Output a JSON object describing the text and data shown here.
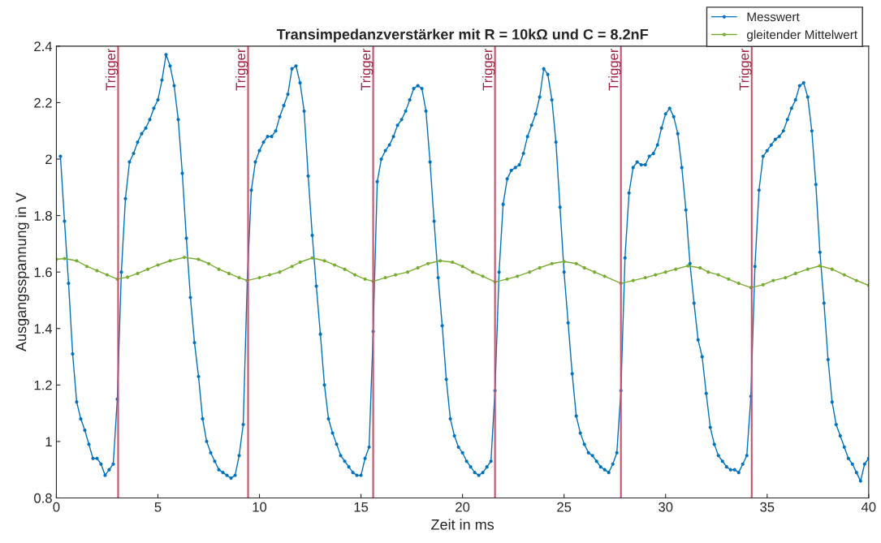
{
  "chart_data": {
    "type": "line",
    "title": "Transimpedanzverstärker mit R = 10kΩ und C = 8.2nF",
    "xlabel": "Zeit in ms",
    "ylabel": "Ausgangsspannung in V",
    "xlim": [
      0,
      40
    ],
    "xticks": [
      0,
      5,
      10,
      15,
      20,
      25,
      30,
      35,
      40
    ],
    "ylim": [
      0.8,
      2.4
    ],
    "yticks": [
      0.8,
      1,
      1.2,
      1.4,
      1.6,
      1.8,
      2,
      2.2,
      2.4
    ],
    "grid": false,
    "legend": "top right",
    "marker": "circle",
    "line_style": "solid",
    "series": [
      {
        "name": "Messwert",
        "color": "#0072bd",
        "x": [
          0.2,
          0.4,
          0.6,
          0.8,
          1.0,
          1.2,
          1.4,
          1.6,
          1.8,
          2.0,
          2.2,
          2.4,
          2.6,
          2.8,
          3.0,
          3.2,
          3.4,
          3.6,
          3.8,
          4.0,
          4.2,
          4.4,
          4.6,
          4.8,
          5.0,
          5.2,
          5.4,
          5.6,
          5.8,
          6.0,
          6.2,
          6.4,
          6.6,
          6.8,
          7.0,
          7.2,
          7.4,
          7.6,
          7.8,
          8.0,
          8.2,
          8.4,
          8.6,
          8.8,
          9.0,
          9.2,
          9.4,
          9.6,
          9.8,
          10.0,
          10.2,
          10.4,
          10.6,
          10.8,
          11.0,
          11.2,
          11.4,
          11.6,
          11.8,
          12.0,
          12.2,
          12.4,
          12.6,
          12.8,
          13.0,
          13.2,
          13.4,
          13.6,
          13.8,
          14.0,
          14.2,
          14.4,
          14.6,
          14.8,
          15.0,
          15.2,
          15.4,
          15.6,
          15.8,
          16.0,
          16.2,
          16.4,
          16.6,
          16.8,
          17.0,
          17.2,
          17.4,
          17.6,
          17.8,
          18.0,
          18.2,
          18.4,
          18.6,
          18.8,
          19.0,
          19.2,
          19.4,
          19.6,
          19.8,
          20.0,
          20.2,
          20.4,
          20.6,
          20.8,
          21.0,
          21.2,
          21.4,
          21.6,
          21.8,
          22.0,
          22.2,
          22.4,
          22.6,
          22.8,
          23.0,
          23.2,
          23.4,
          23.6,
          23.8,
          24.0,
          24.2,
          24.4,
          24.6,
          24.8,
          25.0,
          25.2,
          25.4,
          25.6,
          25.8,
          26.0,
          26.2,
          26.4,
          26.6,
          26.8,
          27.0,
          27.2,
          27.4,
          27.6,
          27.8,
          28.0,
          28.2,
          28.4,
          28.6,
          28.8,
          29.0,
          29.2,
          29.4,
          29.6,
          29.8,
          30.0,
          30.2,
          30.4,
          30.6,
          30.8,
          31.0,
          31.2,
          31.4,
          31.6,
          31.8,
          32.0,
          32.2,
          32.4,
          32.6,
          32.8,
          33.0,
          33.2,
          33.4,
          33.6,
          33.8,
          34.0,
          34.2,
          34.4,
          34.6,
          34.8,
          35.0,
          35.2,
          35.4,
          35.6,
          35.8,
          36.0,
          36.2,
          36.4,
          36.6,
          36.8,
          37.0,
          37.2,
          37.4,
          37.6,
          37.8,
          38.0,
          38.2,
          38.4,
          38.6,
          38.8,
          39.0,
          39.2,
          39.4,
          39.6,
          39.8,
          40.0
        ],
        "values": [
          2.01,
          1.78,
          1.56,
          1.31,
          1.14,
          1.08,
          1.04,
          0.99,
          0.94,
          0.94,
          0.92,
          0.88,
          0.9,
          0.92,
          1.15,
          1.6,
          1.86,
          1.99,
          2.02,
          2.06,
          2.09,
          2.11,
          2.14,
          2.18,
          2.21,
          2.28,
          2.37,
          2.33,
          2.26,
          2.14,
          1.95,
          1.72,
          1.51,
          1.35,
          1.23,
          1.08,
          1.0,
          0.96,
          0.93,
          0.9,
          0.89,
          0.88,
          0.87,
          0.88,
          0.95,
          1.06,
          1.57,
          1.89,
          1.99,
          2.03,
          2.06,
          2.08,
          2.08,
          2.1,
          2.15,
          2.19,
          2.23,
          2.32,
          2.33,
          2.27,
          2.17,
          1.94,
          1.73,
          1.55,
          1.38,
          1.2,
          1.08,
          1.03,
          0.99,
          0.95,
          0.93,
          0.91,
          0.89,
          0.88,
          0.88,
          0.94,
          0.98,
          1.39,
          1.92,
          2.0,
          2.03,
          2.05,
          2.08,
          2.12,
          2.14,
          2.17,
          2.21,
          2.25,
          2.26,
          2.25,
          2.17,
          1.99,
          1.78,
          1.58,
          1.41,
          1.22,
          1.08,
          1.02,
          0.98,
          0.96,
          0.93,
          0.91,
          0.89,
          0.88,
          0.89,
          0.91,
          0.93,
          1.18,
          1.6,
          1.84,
          1.93,
          1.96,
          1.97,
          1.98,
          2.02,
          2.08,
          2.12,
          2.16,
          2.22,
          2.32,
          2.3,
          2.21,
          2.06,
          1.83,
          1.6,
          1.42,
          1.24,
          1.09,
          1.03,
          0.99,
          0.96,
          0.95,
          0.93,
          0.91,
          0.9,
          0.89,
          0.92,
          0.96,
          1.18,
          1.65,
          1.88,
          1.97,
          1.99,
          1.98,
          1.98,
          2.01,
          2.02,
          2.05,
          2.11,
          2.16,
          2.18,
          2.15,
          2.09,
          1.97,
          1.82,
          1.63,
          1.49,
          1.36,
          1.3,
          1.17,
          1.05,
          0.99,
          0.95,
          0.93,
          0.91,
          0.9,
          0.9,
          0.89,
          0.92,
          0.95,
          1.16,
          1.62,
          1.89,
          2.01,
          2.03,
          2.05,
          2.07,
          2.08,
          2.1,
          2.14,
          2.18,
          2.21,
          2.26,
          2.27,
          2.22,
          2.1,
          1.91,
          1.67,
          1.49,
          1.29,
          1.14,
          1.06,
          1.02,
          0.98,
          0.94,
          0.92,
          0.89,
          0.86,
          0.92,
          0.94
        ]
      },
      {
        "name": "gleitender Mittelwert",
        "color": "#77ac30",
        "x": [
          0,
          0.4,
          1.0,
          1.5,
          2.0,
          2.5,
          3.0,
          3.5,
          4.0,
          4.5,
          5.0,
          5.6,
          6.3,
          7.0,
          7.5,
          8.0,
          8.5,
          9.0,
          9.4,
          10.0,
          10.5,
          11.0,
          11.6,
          12.0,
          12.6,
          13.2,
          13.7,
          14.2,
          14.7,
          15.2,
          15.6,
          16.2,
          16.7,
          17.3,
          17.8,
          18.3,
          18.9,
          19.5,
          20.0,
          20.5,
          21.0,
          21.6,
          22.2,
          22.7,
          23.3,
          23.8,
          24.4,
          25.0,
          25.6,
          26.0,
          26.5,
          27.0,
          27.8,
          28.4,
          29.0,
          29.5,
          30.0,
          30.5,
          31.1,
          31.7,
          32.1,
          32.6,
          33.1,
          33.6,
          34.2,
          34.8,
          35.3,
          35.9,
          36.4,
          37.0,
          37.6,
          38.2,
          38.8,
          39.4,
          40.0
        ],
        "values": [
          1.645,
          1.648,
          1.64,
          1.62,
          1.605,
          1.59,
          1.575,
          1.582,
          1.595,
          1.61,
          1.625,
          1.64,
          1.652,
          1.645,
          1.63,
          1.61,
          1.595,
          1.58,
          1.57,
          1.58,
          1.59,
          1.6,
          1.62,
          1.635,
          1.65,
          1.64,
          1.625,
          1.61,
          1.59,
          1.575,
          1.567,
          1.58,
          1.59,
          1.6,
          1.615,
          1.63,
          1.64,
          1.635,
          1.62,
          1.6,
          1.585,
          1.565,
          1.575,
          1.585,
          1.6,
          1.615,
          1.63,
          1.637,
          1.63,
          1.615,
          1.6,
          1.585,
          1.56,
          1.57,
          1.58,
          1.59,
          1.6,
          1.61,
          1.622,
          1.615,
          1.6,
          1.59,
          1.575,
          1.56,
          1.545,
          1.555,
          1.57,
          1.58,
          1.595,
          1.61,
          1.622,
          1.61,
          1.59,
          1.57,
          1.553
        ]
      }
    ],
    "ref_lines": [
      {
        "axis": "x",
        "value": 3.04,
        "label": "Trigger",
        "color": "#c8506a"
      },
      {
        "axis": "x",
        "value": 9.44,
        "label": "Trigger",
        "color": "#c8506a"
      },
      {
        "axis": "x",
        "value": 15.6,
        "label": "Trigger",
        "color": "#c8506a"
      },
      {
        "axis": "x",
        "value": 21.6,
        "label": "Trigger",
        "color": "#c8506a"
      },
      {
        "axis": "x",
        "value": 27.8,
        "label": "Trigger",
        "color": "#c8506a"
      },
      {
        "axis": "x",
        "value": 34.24,
        "label": "Trigger",
        "color": "#c8506a"
      }
    ]
  }
}
